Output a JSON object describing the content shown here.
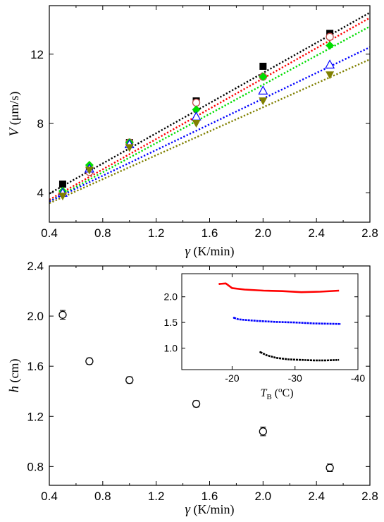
{
  "chart_data": [
    {
      "type": "scatter",
      "panel": "top",
      "xlabel": {
        "symbol": "γ",
        "unit": " (K/min)"
      },
      "ylabel": {
        "symbol": "V",
        "unit": " (μm/s)"
      },
      "xlim": [
        0.4,
        2.8
      ],
      "ylim": [
        2.3,
        14.8
      ],
      "xticks": [
        0.4,
        0.8,
        1.2,
        1.6,
        2.0,
        2.4,
        2.8
      ],
      "xtick_labels": [
        "0.4",
        "0.8",
        "1.2",
        "1.6",
        "2.0",
        "2.4",
        "2.8"
      ],
      "yticks": [
        4,
        8,
        12
      ],
      "ytick_labels": [
        "4",
        "8",
        "12"
      ],
      "grid": false,
      "series": [
        {
          "marker": "square-filled",
          "color": "#000000",
          "x": [
            0.5,
            0.7,
            1.0,
            1.5,
            2.0,
            2.5
          ],
          "y": [
            4.5,
            5.3,
            6.9,
            9.3,
            11.3,
            13.2
          ],
          "fit": {
            "x": [
              0.4,
              2.8
            ],
            "y": [
              3.95,
              14.4
            ],
            "color": "#000000"
          }
        },
        {
          "marker": "circle-open",
          "color": "#c0504d",
          "x": [
            0.5,
            0.7,
            1.0,
            1.5,
            2.0,
            2.5
          ],
          "y": [
            4.0,
            5.2,
            6.9,
            9.2,
            10.7,
            13.0
          ],
          "fit": {
            "x": [
              0.4,
              2.8
            ],
            "y": [
              3.6,
              14.1
            ],
            "color": "#ff0000"
          }
        },
        {
          "marker": "diamond-filled",
          "color": "#00dd00",
          "x": [
            0.5,
            0.7,
            1.0,
            1.5,
            2.0,
            2.5
          ],
          "y": [
            4.1,
            5.6,
            6.9,
            8.8,
            10.7,
            12.5
          ],
          "fit": {
            "x": [
              0.4,
              2.8
            ],
            "y": [
              3.5,
              13.6
            ],
            "color": "#00dd00"
          }
        },
        {
          "marker": "triangle-up-open",
          "color": "#0000ff",
          "x": [
            0.5,
            0.7,
            1.0,
            1.5,
            2.0,
            2.5
          ],
          "y": [
            4.0,
            5.4,
            6.8,
            8.4,
            9.9,
            11.4
          ],
          "fit": {
            "x": [
              0.4,
              2.8
            ],
            "y": [
              3.5,
              12.4
            ],
            "color": "#0000ff"
          }
        },
        {
          "marker": "triangle-down-filled",
          "color": "#808000",
          "x": [
            0.5,
            0.7,
            1.0,
            1.5,
            2.0,
            2.5
          ],
          "y": [
            3.8,
            5.3,
            6.6,
            8.0,
            9.3,
            10.8
          ],
          "fit": {
            "x": [
              0.4,
              2.8
            ],
            "y": [
              3.4,
              11.7
            ],
            "color": "#808000"
          }
        }
      ]
    },
    {
      "type": "scatter",
      "panel": "bottom",
      "xlabel": {
        "symbol": "γ",
        "unit": " (K/min)"
      },
      "ylabel": {
        "symbol": "h",
        "unit": " (cm)"
      },
      "xlim": [
        0.4,
        2.8
      ],
      "ylim": [
        0.65,
        2.4
      ],
      "xticks": [
        0.4,
        0.8,
        1.2,
        1.6,
        2.0,
        2.4,
        2.8
      ],
      "xtick_labels": [
        "0.4",
        "0.8",
        "1.2",
        "1.6",
        "2.0",
        "2.4",
        "2.8"
      ],
      "yticks": [
        0.8,
        1.2,
        1.6,
        2.0,
        2.4
      ],
      "ytick_labels": [
        "0.8",
        "1.2",
        "1.6",
        "2.0",
        "2.4"
      ],
      "grid": false,
      "series": [
        {
          "marker": "circle-open",
          "color": "#000000",
          "x": [
            0.5,
            0.7,
            1.0,
            1.5,
            2.0,
            2.5
          ],
          "y": [
            2.01,
            1.64,
            1.49,
            1.3,
            1.08,
            0.79
          ],
          "yerr": [
            0.035,
            0.025,
            0.025,
            0.025,
            0.035,
            0.03
          ]
        }
      ],
      "inset": {
        "type": "line",
        "xlabel": {
          "symbol": "T",
          "sub": "B",
          "unit_pre": " (",
          "sup": "o",
          "unit_post": "C)"
        },
        "xlim": [
          -12,
          -40
        ],
        "ylim": [
          0.58,
          2.45
        ],
        "xticks": [
          -20,
          -30,
          -40
        ],
        "xtick_labels": [
          "-20",
          "-30",
          "-40"
        ],
        "yticks": [
          1.0,
          1.5,
          2.0
        ],
        "ytick_labels": [
          "1.0",
          "1.5",
          "2.0"
        ],
        "series": [
          {
            "color": "#ff0000",
            "x": [
              -18.0,
              -19.0,
              -20.0,
              -22.0,
              -25.0,
              -28.0,
              -31.0,
              -34.0,
              -37.0
            ],
            "y": [
              2.25,
              2.26,
              2.17,
              2.14,
              2.12,
              2.11,
              2.09,
              2.1,
              2.12
            ]
          },
          {
            "color": "#0000ff",
            "x": [
              -20.3,
              -21.0,
              -22.0,
              -24.0,
              -27.0,
              -30.0,
              -33.0,
              -37.3
            ],
            "y": [
              1.59,
              1.56,
              1.55,
              1.53,
              1.51,
              1.5,
              1.48,
              1.47
            ]
          },
          {
            "color": "#000000",
            "x": [
              -24.5,
              -25.5,
              -27.0,
              -29.0,
              -31.0,
              -33.0,
              -35.0,
              -37.0
            ],
            "y": [
              0.92,
              0.86,
              0.81,
              0.78,
              0.77,
              0.76,
              0.76,
              0.77
            ]
          }
        ]
      }
    }
  ]
}
